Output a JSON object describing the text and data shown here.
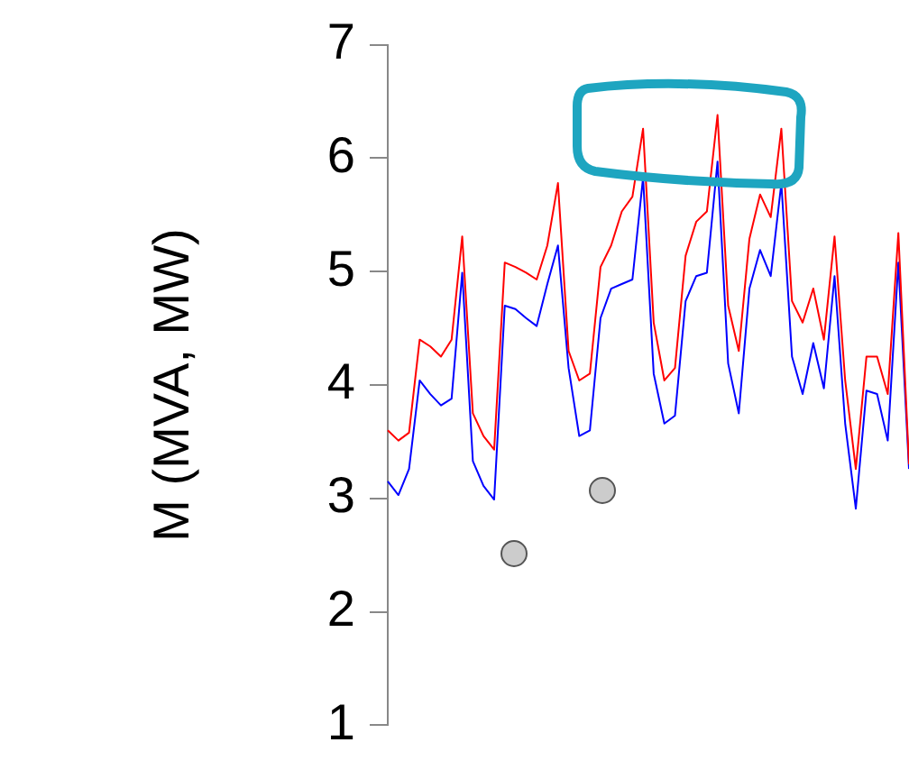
{
  "chart_data": {
    "type": "line",
    "ylabel": "M (MVA, MW)",
    "categories": [
      null,
      null,
      null,
      null,
      null,
      null,
      null,
      null,
      null,
      null,
      null,
      null,
      null,
      null,
      null,
      null,
      null,
      null,
      null,
      null,
      null,
      null,
      null,
      null,
      null,
      null,
      null,
      null,
      null,
      null,
      null,
      null,
      null,
      null,
      null,
      null,
      null,
      null,
      null,
      null,
      null,
      null,
      null,
      null,
      null,
      null,
      null,
      null,
      null,
      null
    ],
    "ylim": [
      1,
      7
    ],
    "yticks": [
      1,
      2,
      3,
      4,
      5,
      6,
      7
    ],
    "tick_labels": "y",
    "grid": false,
    "legend": false,
    "marker": "none",
    "line_style": "solid",
    "series": [
      {
        "color": "#ff0000",
        "values": [
          3.6,
          3.51,
          3.58,
          4.4,
          4.34,
          4.25,
          4.4,
          5.31,
          3.75,
          3.55,
          3.43,
          5.08,
          5.04,
          4.99,
          4.93,
          5.23,
          5.78,
          4.3,
          4.04,
          4.1,
          5.04,
          5.23,
          5.53,
          5.66,
          6.26,
          4.55,
          4.04,
          4.15,
          5.14,
          5.44,
          5.53,
          6.38,
          4.7,
          4.3,
          5.29,
          5.68,
          5.48,
          6.26,
          4.74,
          4.55,
          4.85,
          4.4,
          5.31,
          4.04,
          3.26,
          4.25,
          4.25,
          3.92,
          5.34,
          3.3
        ]
      },
      {
        "color": "#0000ff",
        "values": [
          3.15,
          3.03,
          3.26,
          4.04,
          3.92,
          3.82,
          3.88,
          4.99,
          3.33,
          3.11,
          2.99,
          4.7,
          4.67,
          4.59,
          4.52,
          4.89,
          5.23,
          4.15,
          3.55,
          3.6,
          4.59,
          4.85,
          4.89,
          4.93,
          5.83,
          4.1,
          3.66,
          3.73,
          4.74,
          4.96,
          4.99,
          5.97,
          4.19,
          3.75,
          4.85,
          5.19,
          4.96,
          5.78,
          4.25,
          3.92,
          4.37,
          3.97,
          4.96,
          3.66,
          2.91,
          3.95,
          3.92,
          3.51,
          5.08,
          3.26
        ]
      }
    ]
  }
}
